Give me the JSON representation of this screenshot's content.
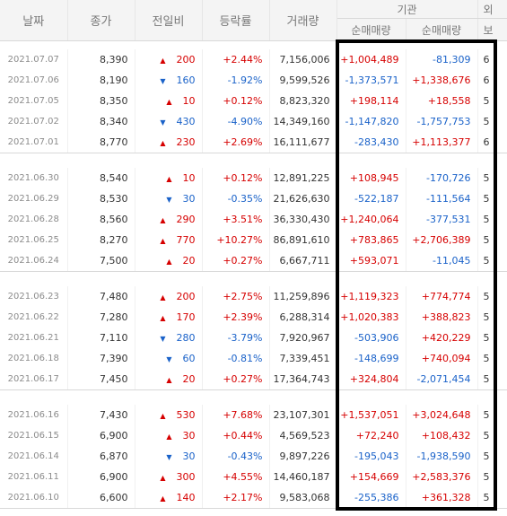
{
  "headers": {
    "date": "날짜",
    "close": "종가",
    "change": "전일비",
    "pct": "등락률",
    "volume": "거래량",
    "institution": "기관",
    "inst_net": "순매매량",
    "inst_hold": "순매매량",
    "foreign_partial": "외",
    "foreign_sub_partial": "보"
  },
  "colors": {
    "up": "#d60000",
    "down": "#1a62c9",
    "highlight_border": "#000000"
  },
  "icons": {
    "up": "triangle-up-icon",
    "down": "triangle-down-icon"
  },
  "groups": [
    {
      "rows": [
        {
          "date": "2021.07.07",
          "close": "8,390",
          "dir": "up",
          "change": "200",
          "pct": "+2.44%",
          "volume": "7,156,006",
          "inst": "+1,004,489",
          "foreign": "-81,309",
          "extra": "6"
        },
        {
          "date": "2021.07.06",
          "close": "8,190",
          "dir": "down",
          "change": "160",
          "pct": "-1.92%",
          "volume": "9,599,526",
          "inst": "-1,373,571",
          "foreign": "+1,338,676",
          "extra": "6"
        },
        {
          "date": "2021.07.05",
          "close": "8,350",
          "dir": "up",
          "change": "10",
          "pct": "+0.12%",
          "volume": "8,823,320",
          "inst": "+198,114",
          "foreign": "+18,558",
          "extra": "5"
        },
        {
          "date": "2021.07.02",
          "close": "8,340",
          "dir": "down",
          "change": "430",
          "pct": "-4.90%",
          "volume": "14,349,160",
          "inst": "-1,147,820",
          "foreign": "-1,757,753",
          "extra": "5"
        },
        {
          "date": "2021.07.01",
          "close": "8,770",
          "dir": "up",
          "change": "230",
          "pct": "+2.69%",
          "volume": "16,111,677",
          "inst": "-283,430",
          "foreign": "+1,113,377",
          "extra": "6"
        }
      ]
    },
    {
      "rows": [
        {
          "date": "2021.06.30",
          "close": "8,540",
          "dir": "up",
          "change": "10",
          "pct": "+0.12%",
          "volume": "12,891,225",
          "inst": "+108,945",
          "foreign": "-170,726",
          "extra": "5"
        },
        {
          "date": "2021.06.29",
          "close": "8,530",
          "dir": "down",
          "change": "30",
          "pct": "-0.35%",
          "volume": "21,626,630",
          "inst": "-522,187",
          "foreign": "-111,564",
          "extra": "5"
        },
        {
          "date": "2021.06.28",
          "close": "8,560",
          "dir": "up",
          "change": "290",
          "pct": "+3.51%",
          "volume": "36,330,430",
          "inst": "+1,240,064",
          "foreign": "-377,531",
          "extra": "5"
        },
        {
          "date": "2021.06.25",
          "close": "8,270",
          "dir": "up",
          "change": "770",
          "pct": "+10.27%",
          "volume": "86,891,610",
          "inst": "+783,865",
          "foreign": "+2,706,389",
          "extra": "5"
        },
        {
          "date": "2021.06.24",
          "close": "7,500",
          "dir": "up",
          "change": "20",
          "pct": "+0.27%",
          "volume": "6,667,711",
          "inst": "+593,071",
          "foreign": "-11,045",
          "extra": "5"
        }
      ]
    },
    {
      "rows": [
        {
          "date": "2021.06.23",
          "close": "7,480",
          "dir": "up",
          "change": "200",
          "pct": "+2.75%",
          "volume": "11,259,896",
          "inst": "+1,119,323",
          "foreign": "+774,774",
          "extra": "5"
        },
        {
          "date": "2021.06.22",
          "close": "7,280",
          "dir": "up",
          "change": "170",
          "pct": "+2.39%",
          "volume": "6,288,314",
          "inst": "+1,020,383",
          "foreign": "+388,823",
          "extra": "5"
        },
        {
          "date": "2021.06.21",
          "close": "7,110",
          "dir": "down",
          "change": "280",
          "pct": "-3.79%",
          "volume": "7,920,967",
          "inst": "-503,906",
          "foreign": "+420,229",
          "extra": "5"
        },
        {
          "date": "2021.06.18",
          "close": "7,390",
          "dir": "down",
          "change": "60",
          "pct": "-0.81%",
          "volume": "7,339,451",
          "inst": "-148,699",
          "foreign": "+740,094",
          "extra": "5"
        },
        {
          "date": "2021.06.17",
          "close": "7,450",
          "dir": "up",
          "change": "20",
          "pct": "+0.27%",
          "volume": "17,364,743",
          "inst": "+324,804",
          "foreign": "-2,071,454",
          "extra": "5"
        }
      ]
    },
    {
      "rows": [
        {
          "date": "2021.06.16",
          "close": "7,430",
          "dir": "up",
          "change": "530",
          "pct": "+7.68%",
          "volume": "23,107,301",
          "inst": "+1,537,051",
          "foreign": "+3,024,648",
          "extra": "5"
        },
        {
          "date": "2021.06.15",
          "close": "6,900",
          "dir": "up",
          "change": "30",
          "pct": "+0.44%",
          "volume": "4,569,523",
          "inst": "+72,240",
          "foreign": "+108,432",
          "extra": "5"
        },
        {
          "date": "2021.06.14",
          "close": "6,870",
          "dir": "down",
          "change": "30",
          "pct": "-0.43%",
          "volume": "9,897,226",
          "inst": "-195,043",
          "foreign": "-1,938,590",
          "extra": "5"
        },
        {
          "date": "2021.06.11",
          "close": "6,900",
          "dir": "up",
          "change": "300",
          "pct": "+4.55%",
          "volume": "14,460,187",
          "inst": "+154,669",
          "foreign": "+2,583,376",
          "extra": "5"
        },
        {
          "date": "2021.06.10",
          "close": "6,600",
          "dir": "up",
          "change": "140",
          "pct": "+2.17%",
          "volume": "9,583,068",
          "inst": "-255,386",
          "foreign": "+361,328",
          "extra": "5"
        }
      ]
    }
  ]
}
